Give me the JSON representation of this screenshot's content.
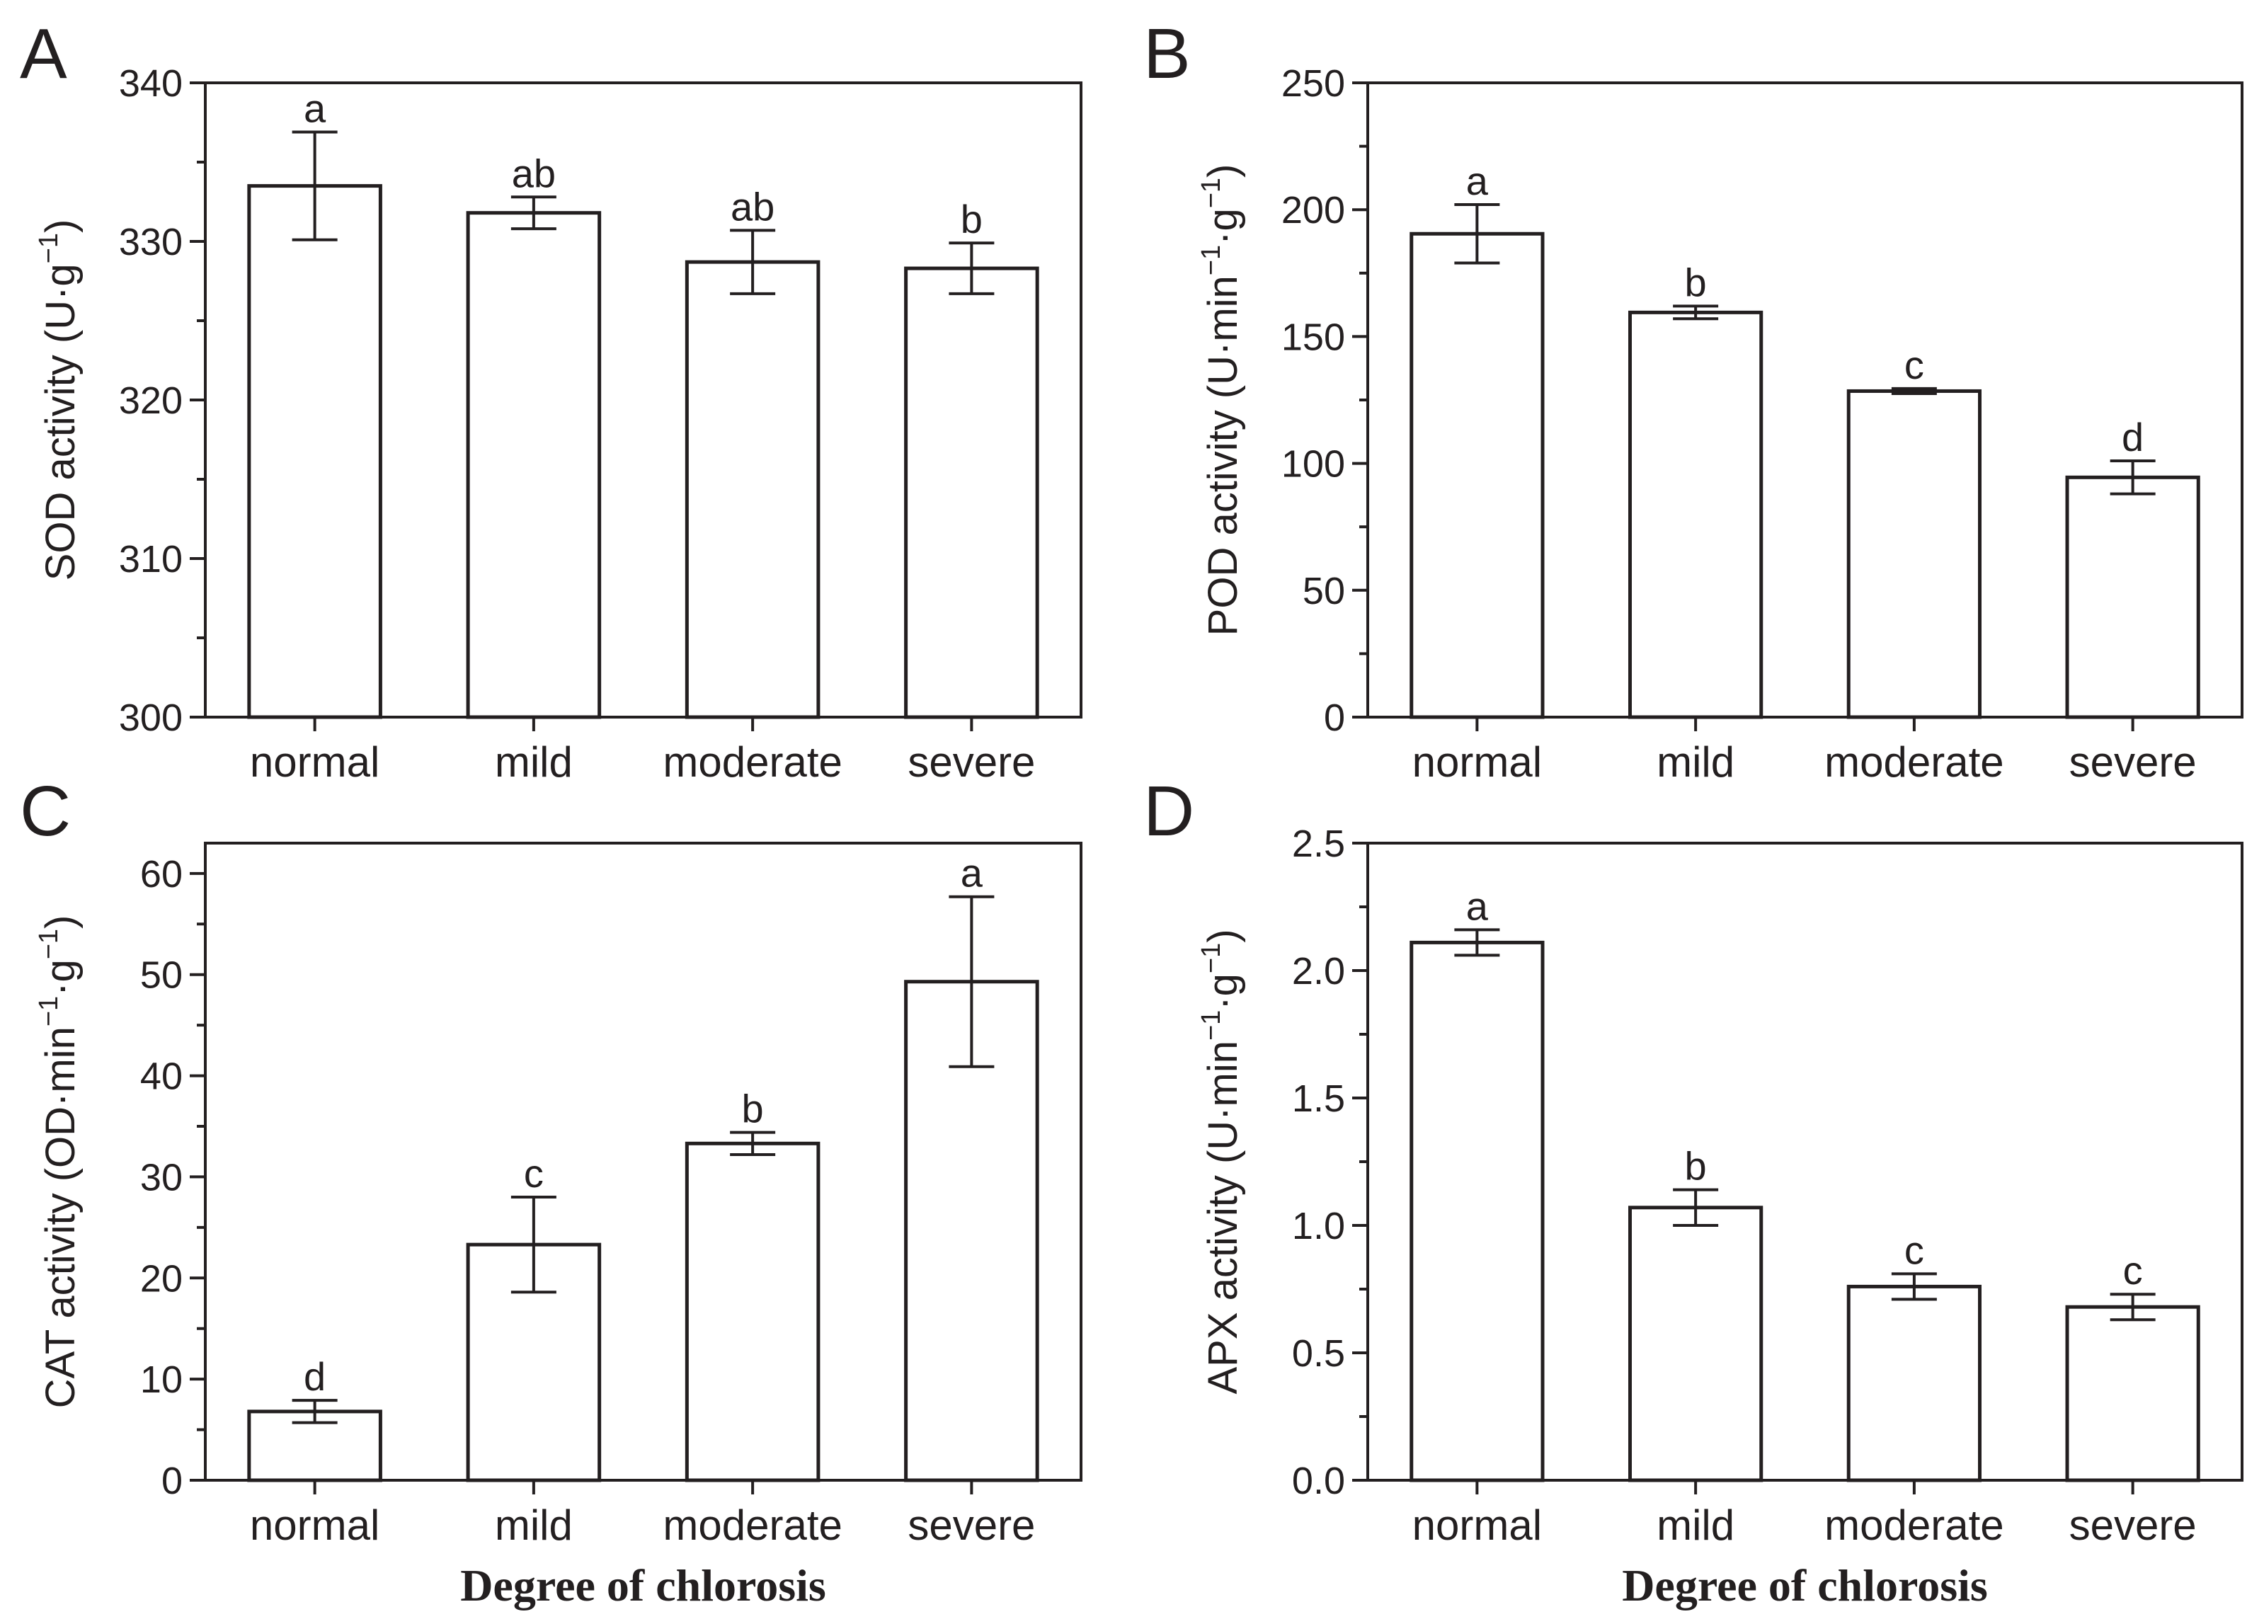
{
  "figure": {
    "xlabel": "Degree of chlorosis"
  },
  "chart_data": [
    {
      "panel": "A",
      "type": "bar",
      "categories": [
        "normal",
        "mild",
        "moderate",
        "severe"
      ],
      "values": [
        333.5,
        331.8,
        328.7,
        328.3
      ],
      "errors": [
        3.4,
        1.0,
        2.0,
        1.6
      ],
      "letters": [
        "a",
        "ab",
        "ab",
        "b"
      ],
      "ylabel": {
        "main": "SOD activity (U·g",
        "sup": "−1",
        "tail": ")"
      },
      "xlabel": "",
      "ylim": [
        300,
        340
      ],
      "yticks": [
        "300",
        "310",
        "320",
        "330",
        "340"
      ],
      "minor_step": 5
    },
    {
      "panel": "B",
      "type": "bar",
      "categories": [
        "normal",
        "mild",
        "moderate",
        "severe"
      ],
      "values": [
        190.5,
        159.5,
        128.5,
        94.5
      ],
      "errors": [
        11.5,
        2.5,
        1.0,
        6.5
      ],
      "letters": [
        "a",
        "b",
        "c",
        "d"
      ],
      "ylabel": {
        "main": "POD activity (U·min",
        "sup": "−1",
        "mid": "·g",
        "sup2": "−1",
        "tail": ")"
      },
      "xlabel": "",
      "ylim": [
        0,
        250
      ],
      "yticks": [
        "0",
        "50",
        "100",
        "150",
        "200",
        "250"
      ],
      "minor_step": 25
    },
    {
      "panel": "C",
      "type": "bar",
      "categories": [
        "normal",
        "mild",
        "moderate",
        "severe"
      ],
      "values": [
        6.8,
        23.3,
        33.3,
        49.3
      ],
      "errors": [
        1.1,
        4.7,
        1.1,
        8.4
      ],
      "letters": [
        "d",
        "c",
        "b",
        "a"
      ],
      "ylabel": {
        "main": "CAT activity (OD·min",
        "sup": "−1",
        "mid": "·g",
        "sup2": "−1",
        "tail": ")"
      },
      "xlabel": "Degree of chlorosis",
      "ylim": [
        0,
        63
      ],
      "yticks": [
        "0",
        "10",
        "20",
        "30",
        "40",
        "50",
        "60"
      ],
      "minor_step": 5
    },
    {
      "panel": "D",
      "type": "bar",
      "categories": [
        "normal",
        "mild",
        "moderate",
        "severe"
      ],
      "values": [
        2.11,
        1.07,
        0.76,
        0.68
      ],
      "errors": [
        0.05,
        0.07,
        0.05,
        0.05
      ],
      "letters": [
        "a",
        "b",
        "c",
        "c"
      ],
      "ylabel": {
        "main": "APX activity (U·min",
        "sup": "−1",
        "mid": "·g",
        "sup2": "−1",
        "tail": ")"
      },
      "xlabel": "Degree of chlorosis",
      "ylim": [
        0,
        2.5
      ],
      "yticks": [
        "0.0",
        "0.5",
        "1.0",
        "1.5",
        "2.0",
        "2.5"
      ],
      "minor_step": 0.25
    }
  ]
}
